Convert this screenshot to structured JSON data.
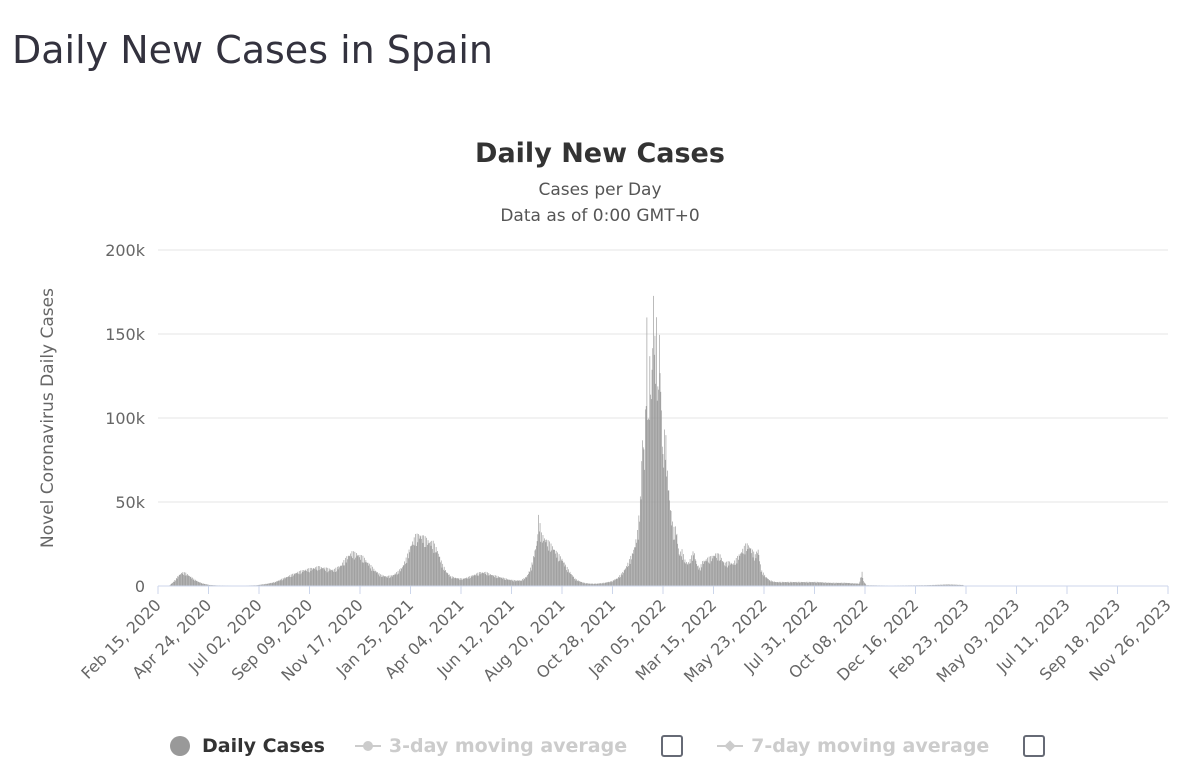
{
  "page": {
    "title": "Daily New Cases in Spain"
  },
  "chart_data": {
    "type": "bar",
    "title": "Daily New Cases",
    "subtitle": "Cases per Day",
    "subtitle2": "Data as of 0:00 GMT+0",
    "ylabel": "Novel Coronavirus Daily Cases",
    "ylim": [
      0,
      200000
    ],
    "y_ticks": [
      {
        "value": 0,
        "label": "0"
      },
      {
        "value": 50000,
        "label": "50k"
      },
      {
        "value": 100000,
        "label": "100k"
      },
      {
        "value": 150000,
        "label": "150k"
      },
      {
        "value": 200000,
        "label": "200k"
      }
    ],
    "x_tick_labels": [
      "Feb 15, 2020",
      "Apr 24, 2020",
      "Jul 02, 2020",
      "Sep 09, 2020",
      "Nov 17, 2020",
      "Jan 25, 2021",
      "Apr 04, 2021",
      "Jun 12, 2021",
      "Aug 20, 2021",
      "Oct 28, 2021",
      "Jan 05, 2022",
      "Mar 15, 2022",
      "May 23, 2022",
      "Jul 31, 2022",
      "Oct 08, 2022",
      "Dec 16, 2022",
      "Feb 23, 2023",
      "May 03, 2023",
      "Jul 11, 2023",
      "Sep 18, 2023",
      "Nov 26, 2023"
    ],
    "x_range_days": [
      0,
      1380
    ],
    "series": [
      {
        "name": "Daily Cases",
        "color": "#999999",
        "description": "Approximate daily values (day offset from Feb 15, 2020, cases)",
        "points": [
          [
            0,
            0
          ],
          [
            15,
            0
          ],
          [
            22,
            3000
          ],
          [
            28,
            6500
          ],
          [
            33,
            8500
          ],
          [
            38,
            8000
          ],
          [
            44,
            6000
          ],
          [
            50,
            4000
          ],
          [
            56,
            2500
          ],
          [
            62,
            1500
          ],
          [
            70,
            700
          ],
          [
            80,
            400
          ],
          [
            100,
            300
          ],
          [
            120,
            300
          ],
          [
            135,
            500
          ],
          [
            150,
            1500
          ],
          [
            160,
            2500
          ],
          [
            170,
            4500
          ],
          [
            180,
            6500
          ],
          [
            190,
            8500
          ],
          [
            200,
            10000
          ],
          [
            210,
            11000
          ],
          [
            220,
            12000
          ],
          [
            230,
            11000
          ],
          [
            240,
            10000
          ],
          [
            250,
            13000
          ],
          [
            258,
            18000
          ],
          [
            265,
            21000
          ],
          [
            272,
            20000
          ],
          [
            280,
            18000
          ],
          [
            288,
            14000
          ],
          [
            296,
            10000
          ],
          [
            304,
            7000
          ],
          [
            312,
            6000
          ],
          [
            320,
            6500
          ],
          [
            328,
            9000
          ],
          [
            334,
            12000
          ],
          [
            340,
            18000
          ],
          [
            346,
            26000
          ],
          [
            352,
            31000
          ],
          [
            358,
            32000
          ],
          [
            364,
            30000
          ],
          [
            370,
            28000
          ],
          [
            376,
            27000
          ],
          [
            382,
            22000
          ],
          [
            388,
            14000
          ],
          [
            394,
            9000
          ],
          [
            400,
            6000
          ],
          [
            408,
            5000
          ],
          [
            416,
            4500
          ],
          [
            424,
            5500
          ],
          [
            432,
            7000
          ],
          [
            440,
            8500
          ],
          [
            448,
            8500
          ],
          [
            456,
            7000
          ],
          [
            464,
            6000
          ],
          [
            472,
            5000
          ],
          [
            480,
            4000
          ],
          [
            488,
            3500
          ],
          [
            496,
            3500
          ],
          [
            504,
            6000
          ],
          [
            510,
            12000
          ],
          [
            514,
            20000
          ],
          [
            518,
            28000
          ],
          [
            520,
            43000
          ],
          [
            524,
            32000
          ],
          [
            528,
            30000
          ],
          [
            534,
            27000
          ],
          [
            540,
            24000
          ],
          [
            546,
            20000
          ],
          [
            552,
            17000
          ],
          [
            558,
            12000
          ],
          [
            564,
            8000
          ],
          [
            570,
            4500
          ],
          [
            576,
            3000
          ],
          [
            582,
            2000
          ],
          [
            590,
            1500
          ],
          [
            600,
            1500
          ],
          [
            610,
            2000
          ],
          [
            620,
            3000
          ],
          [
            628,
            5000
          ],
          [
            636,
            9000
          ],
          [
            642,
            14000
          ],
          [
            648,
            20000
          ],
          [
            652,
            26000
          ],
          [
            656,
            36000
          ],
          [
            660,
            60000
          ],
          [
            662,
            95000
          ],
          [
            665,
            80000
          ],
          [
            668,
            160000
          ],
          [
            670,
            100000
          ],
          [
            672,
            140000
          ],
          [
            674,
            118000
          ],
          [
            677,
            178000
          ],
          [
            679,
            150000
          ],
          [
            681,
            160000
          ],
          [
            683,
            120000
          ],
          [
            685,
            155000
          ],
          [
            688,
            110000
          ],
          [
            690,
            80000
          ],
          [
            693,
            100000
          ],
          [
            696,
            70000
          ],
          [
            700,
            50000
          ],
          [
            704,
            35000
          ],
          [
            708,
            36000
          ],
          [
            712,
            20000
          ],
          [
            716,
            22000
          ],
          [
            720,
            16000
          ],
          [
            724,
            14000
          ],
          [
            728,
            17000
          ],
          [
            732,
            22000
          ],
          [
            736,
            14000
          ],
          [
            740,
            11000
          ],
          [
            744,
            15000
          ],
          [
            750,
            17000
          ],
          [
            756,
            18000
          ],
          [
            762,
            20000
          ],
          [
            768,
            19000
          ],
          [
            774,
            14000
          ],
          [
            780,
            15000
          ],
          [
            786,
            14000
          ],
          [
            792,
            18000
          ],
          [
            798,
            22000
          ],
          [
            804,
            26000
          ],
          [
            808,
            25000
          ],
          [
            812,
            22000
          ],
          [
            816,
            19000
          ],
          [
            820,
            23000
          ],
          [
            824,
            10000
          ],
          [
            830,
            6000
          ],
          [
            836,
            3500
          ],
          [
            844,
            2500
          ],
          [
            860,
            2500
          ],
          [
            880,
            2500
          ],
          [
            900,
            2500
          ],
          [
            920,
            2000
          ],
          [
            940,
            2000
          ],
          [
            958,
            1500
          ],
          [
            962,
            8500
          ],
          [
            964,
            3000
          ],
          [
            968,
            500
          ],
          [
            1000,
            300
          ],
          [
            1050,
            500
          ],
          [
            1080,
            1000
          ],
          [
            1120,
            300
          ],
          [
            1160,
            200
          ],
          [
            1200,
            100
          ],
          [
            1300,
            50
          ],
          [
            1380,
            0
          ]
        ]
      },
      {
        "name": "3-day moving average",
        "enabled": false
      },
      {
        "name": "7-day moving average",
        "enabled": false
      }
    ]
  },
  "legend": {
    "daily_label": "Daily Cases",
    "avg3_label": "3-day moving average",
    "avg7_label": "7-day moving average"
  }
}
